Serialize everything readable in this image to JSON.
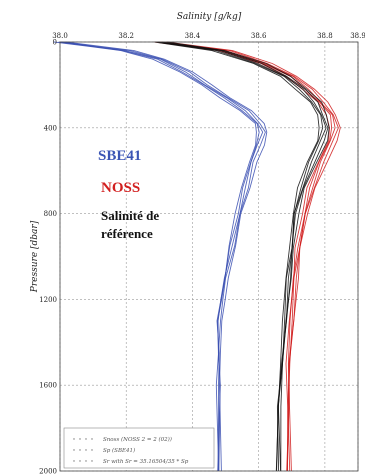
{
  "chart_data": {
    "type": "line",
    "title": "",
    "xlabel": "Salinity [g/kg]",
    "ylabel": "Pressure [dbar]",
    "xlim": [
      38.0,
      38.9
    ],
    "ylim": [
      2000,
      0
    ],
    "x_ticks": [
      "38.0",
      "38.2",
      "38.4",
      "38.6",
      "38.8",
      "38.9"
    ],
    "y_ticks": [
      "0",
      "400",
      "800",
      "1200",
      "1600",
      "2000"
    ],
    "x_tick_values": [
      38.0,
      38.2,
      38.4,
      38.6,
      38.8,
      38.9
    ],
    "y_tick_values": [
      0,
      400,
      800,
      1200,
      1600,
      2000
    ],
    "grid": true,
    "legend_position": "bottom-left",
    "legend": [
      "Snoss (NOSS 2 = 2 (02))",
      "Sp (SBE41)",
      "Sr with Sr = 35.16504/35 * Sp"
    ],
    "annotations": [
      {
        "text": "SBE41",
        "color": "#3b55b5"
      },
      {
        "text": "NOSS",
        "color": "#d21f1f"
      },
      {
        "text": "Salinité de",
        "color": "#111111"
      },
      {
        "text": "référence",
        "color": "#111111"
      }
    ],
    "series": [
      {
        "color": "#3a4fb2",
        "points": [
          [
            38.0,
            0
          ],
          [
            38.1,
            20
          ],
          [
            38.2,
            40
          ],
          [
            38.3,
            80
          ],
          [
            38.38,
            140
          ],
          [
            38.44,
            200
          ],
          [
            38.5,
            260
          ],
          [
            38.56,
            320
          ],
          [
            38.6,
            380
          ],
          [
            38.61,
            420
          ],
          [
            38.6,
            480
          ],
          [
            38.58,
            560
          ],
          [
            38.56,
            680
          ],
          [
            38.54,
            800
          ],
          [
            38.52,
            950
          ],
          [
            38.5,
            1100
          ],
          [
            38.49,
            1200
          ],
          [
            38.48,
            1300
          ],
          [
            38.48,
            1450
          ],
          [
            38.48,
            1600
          ],
          [
            38.48,
            2000
          ]
        ]
      },
      {
        "color": "#d01c1c",
        "points": [
          [
            38.3,
            0
          ],
          [
            38.5,
            40
          ],
          [
            38.62,
            100
          ],
          [
            38.7,
            160
          ],
          [
            38.75,
            220
          ],
          [
            38.79,
            280
          ],
          [
            38.82,
            340
          ],
          [
            38.83,
            400
          ],
          [
            38.82,
            460
          ],
          [
            38.79,
            560
          ],
          [
            38.76,
            680
          ],
          [
            38.74,
            800
          ],
          [
            38.72,
            960
          ],
          [
            38.71,
            1100
          ],
          [
            38.7,
            1300
          ],
          [
            38.69,
            1500
          ],
          [
            38.69,
            1700
          ],
          [
            38.69,
            2000
          ]
        ]
      },
      {
        "color": "#111111",
        "points": [
          [
            38.3,
            0
          ],
          [
            38.48,
            40
          ],
          [
            38.6,
            100
          ],
          [
            38.68,
            160
          ],
          [
            38.73,
            220
          ],
          [
            38.77,
            280
          ],
          [
            38.79,
            340
          ],
          [
            38.8,
            400
          ],
          [
            38.79,
            460
          ],
          [
            38.76,
            560
          ],
          [
            38.73,
            680
          ],
          [
            38.71,
            800
          ],
          [
            38.7,
            960
          ],
          [
            38.69,
            1100
          ],
          [
            38.68,
            1300
          ],
          [
            38.67,
            1500
          ],
          [
            38.66,
            1700
          ],
          [
            38.66,
            2000
          ]
        ]
      }
    ]
  }
}
